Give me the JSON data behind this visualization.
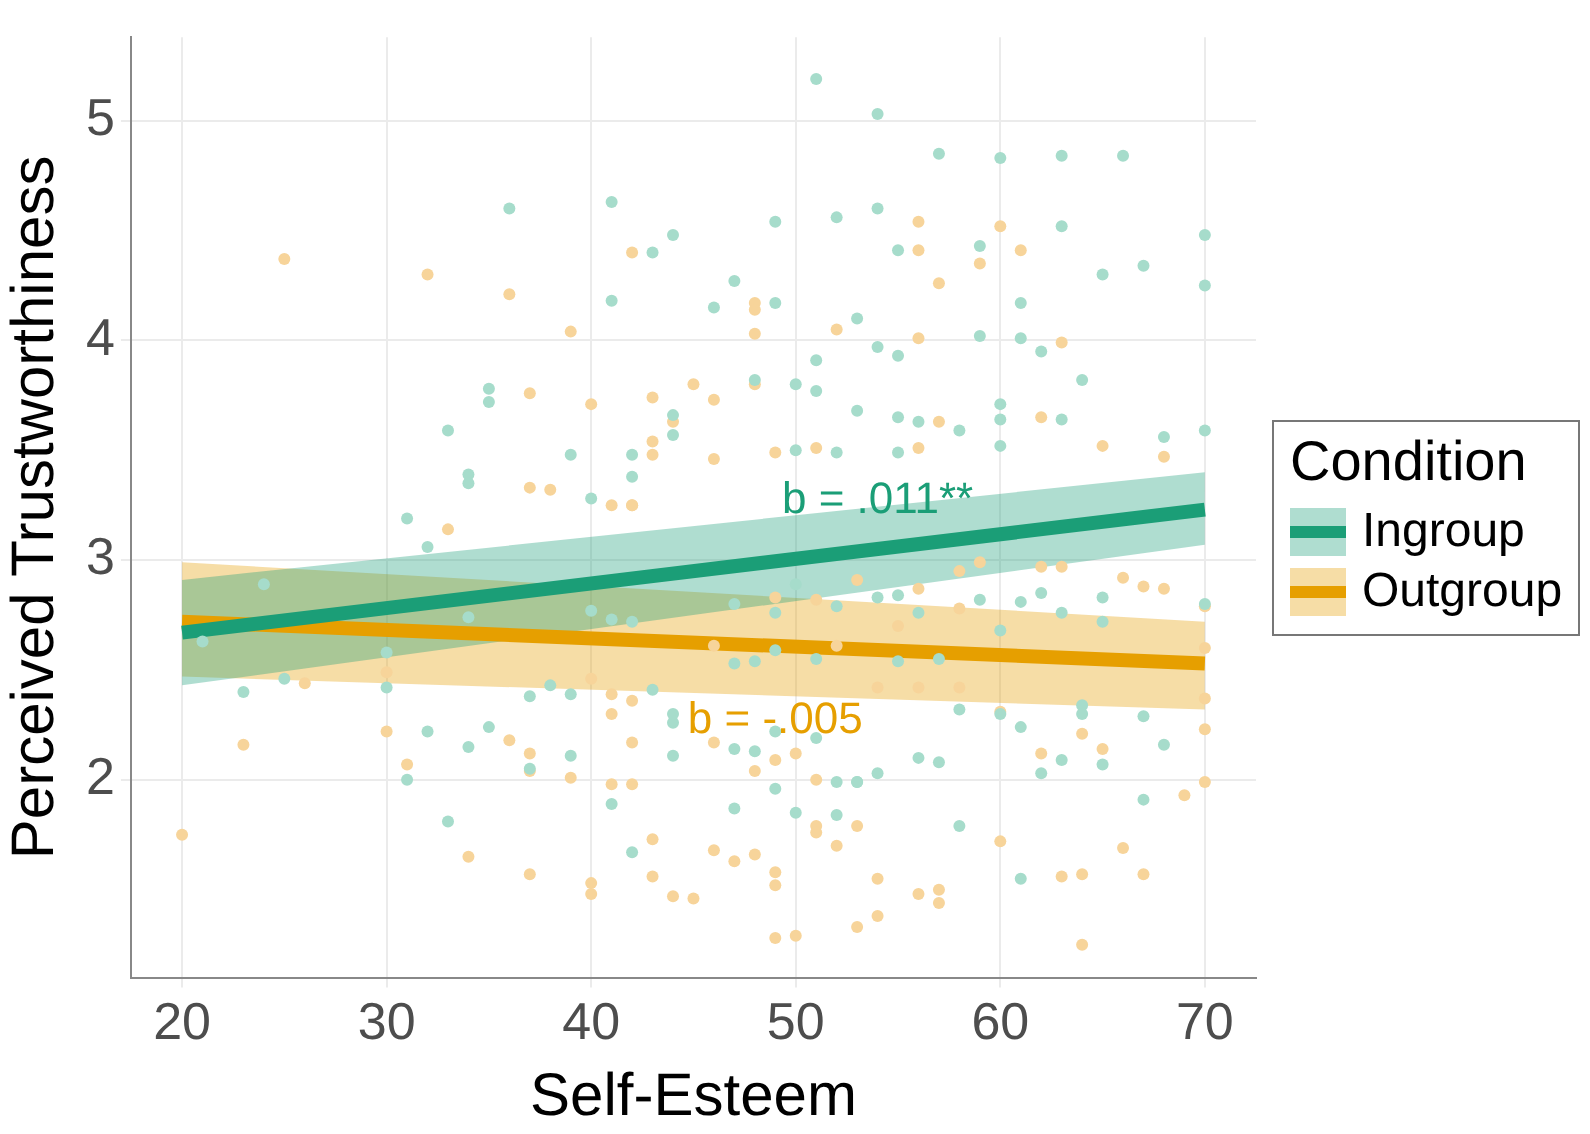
{
  "chart_data": {
    "type": "scatter",
    "xlabel": "Self-Esteem",
    "ylabel": "Perceived Trustworthiness",
    "legend_title": "Condition",
    "legend": "right",
    "grid": true,
    "xlim": [
      17.5,
      72.5
    ],
    "ylim": [
      1.1,
      5.38
    ],
    "xticks": [
      20,
      30,
      40,
      50,
      60,
      70
    ],
    "yticks": [
      2,
      3,
      4,
      5
    ],
    "series": [
      {
        "marker": "circle",
        "color": "#a6dccb",
        "x": [
          51,
          54,
          57,
          60,
          63,
          66,
          49,
          52,
          54,
          63,
          70,
          55,
          59,
          67,
          65,
          70,
          47,
          46,
          49,
          61,
          53,
          54,
          55,
          51,
          59,
          61,
          62,
          64,
          48,
          50,
          51,
          53,
          55,
          56,
          58,
          60,
          60,
          63,
          70,
          68,
          50,
          52,
          55,
          60,
          36,
          41,
          44,
          43,
          41,
          35,
          35,
          33,
          44,
          44,
          39,
          42,
          42,
          34,
          34,
          40,
          31,
          32,
          24,
          21,
          23,
          25,
          30,
          32,
          31,
          33,
          34,
          35,
          37,
          37,
          39,
          39,
          41,
          42,
          44,
          44,
          43,
          44,
          38,
          40,
          41,
          42,
          30,
          34,
          47,
          49,
          50,
          53,
          58,
          61,
          63,
          62,
          65,
          67,
          68,
          67,
          70,
          64,
          64,
          61,
          60,
          58,
          57,
          54,
          56,
          52,
          47,
          48,
          49,
          51,
          53,
          52,
          48,
          47,
          49,
          51,
          55,
          57,
          59,
          61,
          63,
          65,
          54,
          55,
          56,
          52,
          47,
          49,
          60,
          62,
          65,
          50
        ],
        "values": [
          5.19,
          5.03,
          4.85,
          4.83,
          4.84,
          4.84,
          4.54,
          4.56,
          4.6,
          4.52,
          4.48,
          4.41,
          4.43,
          4.34,
          4.3,
          4.25,
          4.27,
          4.15,
          4.17,
          4.17,
          4.1,
          3.97,
          3.93,
          3.91,
          4.02,
          4.01,
          3.95,
          3.82,
          3.82,
          3.8,
          3.77,
          3.68,
          3.65,
          3.63,
          3.59,
          3.71,
          3.64,
          3.64,
          3.59,
          3.56,
          3.5,
          3.49,
          3.49,
          3.52,
          4.6,
          4.63,
          4.48,
          4.4,
          4.18,
          3.78,
          3.72,
          3.59,
          3.66,
          3.57,
          3.48,
          3.48,
          3.38,
          3.39,
          3.35,
          3.28,
          3.19,
          3.06,
          2.89,
          2.63,
          2.4,
          2.46,
          2.42,
          2.22,
          2.0,
          1.81,
          2.15,
          2.24,
          2.38,
          2.05,
          2.39,
          2.11,
          1.89,
          1.67,
          2.11,
          2.26,
          2.41,
          2.3,
          2.43,
          2.77,
          2.73,
          2.72,
          2.58,
          2.74,
          1.87,
          1.96,
          1.85,
          1.99,
          1.79,
          1.55,
          2.09,
          2.03,
          2.07,
          1.91,
          2.16,
          2.29,
          2.8,
          2.34,
          2.3,
          2.24,
          2.3,
          2.32,
          2.08,
          2.03,
          2.1,
          1.84,
          2.14,
          2.13,
          2.22,
          2.19,
          1.99,
          1.99,
          2.54,
          2.53,
          2.59,
          2.55,
          2.54,
          2.55,
          2.82,
          2.81,
          2.76,
          2.83,
          2.83,
          2.84,
          2.76,
          2.79,
          2.8,
          2.76,
          2.68,
          2.85,
          2.72,
          2.89
        ]
      },
      {
        "marker": "circle",
        "color": "#f7d49a",
        "x": [
          25,
          32,
          36,
          39,
          42,
          37,
          40,
          43,
          44,
          43,
          43,
          37,
          38,
          42,
          56,
          60,
          56,
          61,
          59,
          57,
          48,
          48,
          48,
          52,
          56,
          63,
          45,
          46,
          48,
          62,
          57,
          65,
          68,
          46,
          49,
          51,
          56,
          20,
          23,
          30,
          31,
          33,
          34,
          36,
          37,
          37,
          37,
          39,
          40,
          40,
          41,
          42,
          42,
          43,
          43,
          44,
          26,
          30,
          41,
          41,
          42,
          40,
          41,
          42,
          45,
          46,
          48,
          49,
          49,
          49,
          50,
          51,
          53,
          53,
          54,
          54,
          56,
          57,
          57,
          60,
          63,
          64,
          64,
          66,
          67,
          69,
          70,
          70,
          70,
          70,
          70,
          68,
          67,
          66,
          64,
          65,
          62,
          63,
          59,
          58,
          58,
          56,
          55,
          53,
          51,
          49,
          46,
          52,
          54,
          56,
          58,
          60,
          62,
          51,
          50,
          49,
          48,
          46,
          52,
          51,
          47
        ],
        "values": [
          4.37,
          4.3,
          4.21,
          4.04,
          4.4,
          3.76,
          3.71,
          3.74,
          3.63,
          3.54,
          3.48,
          3.33,
          3.32,
          3.25,
          4.54,
          4.52,
          4.41,
          4.41,
          4.35,
          4.26,
          4.17,
          4.14,
          4.03,
          4.05,
          4.01,
          3.99,
          3.8,
          3.73,
          3.8,
          3.65,
          3.63,
          3.52,
          3.47,
          3.46,
          3.49,
          3.51,
          3.51,
          1.75,
          2.16,
          2.22,
          2.07,
          3.14,
          1.65,
          2.18,
          2.12,
          2.04,
          1.57,
          2.01,
          1.53,
          1.48,
          1.98,
          2.17,
          1.98,
          1.73,
          1.56,
          1.47,
          2.44,
          2.49,
          2.39,
          2.3,
          2.36,
          2.46,
          3.25,
          3.25,
          1.46,
          1.68,
          1.66,
          1.58,
          1.52,
          1.28,
          1.29,
          1.79,
          1.79,
          1.33,
          1.38,
          1.55,
          1.48,
          1.44,
          1.5,
          1.72,
          1.56,
          1.57,
          1.25,
          1.69,
          1.57,
          1.93,
          1.99,
          2.23,
          2.37,
          2.79,
          2.6,
          2.87,
          2.88,
          2.92,
          2.21,
          2.14,
          2.97,
          2.97,
          2.99,
          2.95,
          2.78,
          2.87,
          2.7,
          2.91,
          2.82,
          2.83,
          2.61,
          2.61,
          2.42,
          2.42,
          2.42,
          2.31,
          2.12,
          2.0,
          2.12,
          2.09,
          2.04,
          2.17,
          1.7,
          1.76,
          1.63
        ]
      },
      {
        "type": "line",
        "name": "Ingroup",
        "color": "#1b9e77",
        "x": [
          20,
          70
        ],
        "values": [
          2.67,
          3.23
        ],
        "lower": [
          2.43,
          3.07
        ],
        "upper": [
          2.91,
          3.4
        ]
      },
      {
        "type": "line",
        "name": "Outgroup",
        "color": "#e69f00",
        "x": [
          20,
          70
        ],
        "values": [
          2.72,
          2.53
        ],
        "lower": [
          2.47,
          2.32
        ],
        "upper": [
          2.99,
          2.72
        ]
      }
    ],
    "annotations": [
      {
        "text": "b = .011**",
        "x": 54,
        "y": 3.27
      },
      {
        "text": "b = -.005",
        "x": 49,
        "y": 2.27
      }
    ]
  }
}
